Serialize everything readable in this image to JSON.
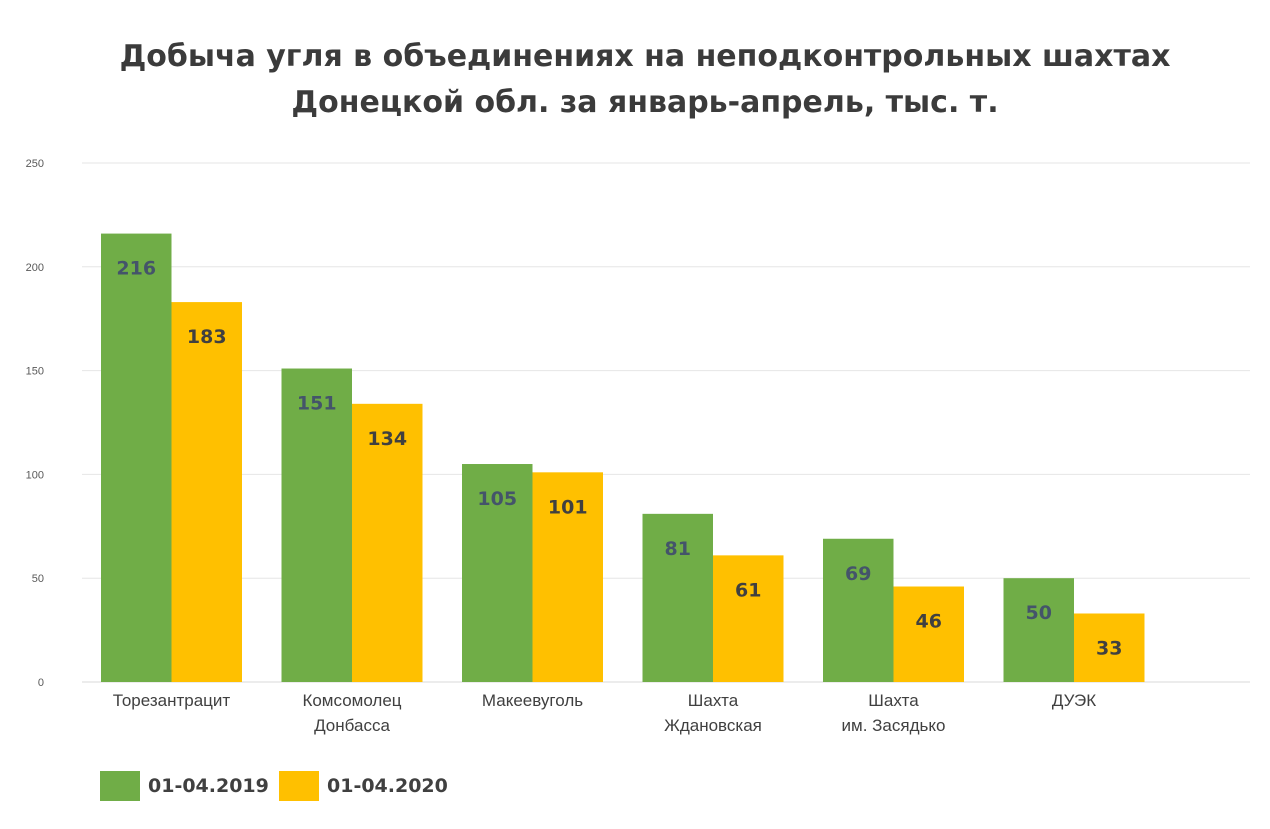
{
  "chart_data": {
    "type": "bar",
    "title_lines": [
      "Добыча угля в объединениях на неподконтрольных шахтах",
      "Донецкой обл. за январь-апрель, тыс. т."
    ],
    "categories": [
      [
        "Торезантрацит"
      ],
      [
        "Комсомолец",
        "Донбасса"
      ],
      [
        "Макеевуголь"
      ],
      [
        "Шахта",
        "Ждановская"
      ],
      [
        "Шахта",
        "им. Засядько"
      ],
      [
        "ДУЭК"
      ]
    ],
    "series": [
      {
        "name": "01-04.2019",
        "color": "#70ad47",
        "label_color": "#44546a",
        "values": [
          216,
          151,
          105,
          81,
          69,
          50
        ]
      },
      {
        "name": "01-04.2020",
        "color": "#ffc000",
        "label_color": "#404040",
        "values": [
          183,
          134,
          101,
          61,
          46,
          33
        ]
      }
    ],
    "ylim": [
      0,
      250
    ],
    "yticks": [
      0,
      50,
      100,
      150,
      200,
      250
    ],
    "grid": true,
    "legend_position": "bottom-left"
  }
}
